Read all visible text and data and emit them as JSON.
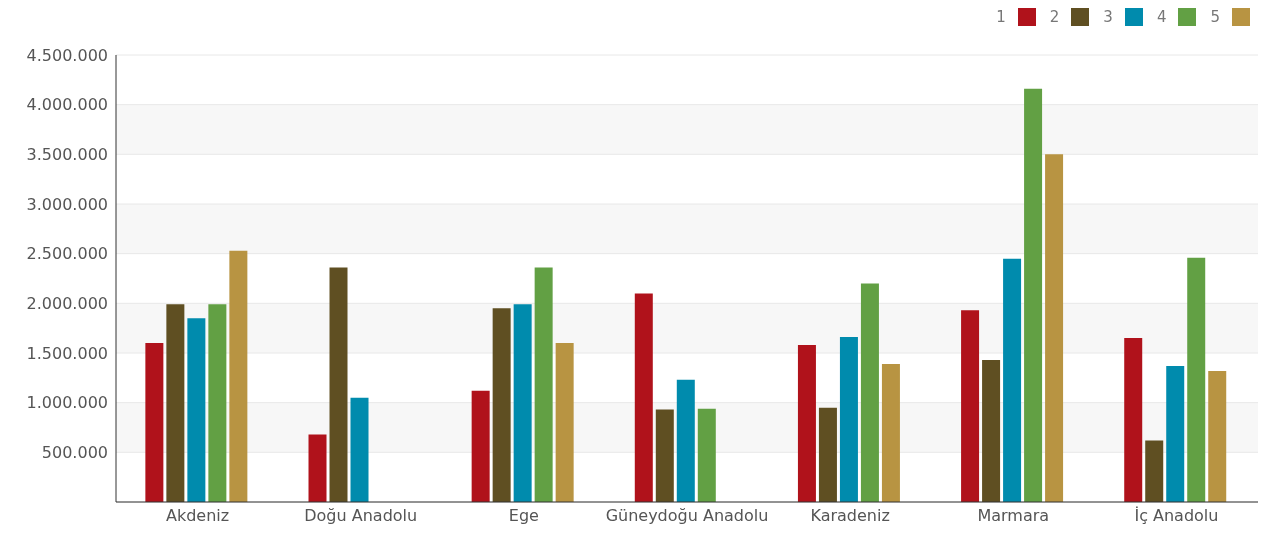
{
  "chart_data": {
    "type": "bar",
    "categories": [
      "Akdeniz",
      "Doğu Anadolu",
      "Ege",
      "Güneydoğu Anadolu",
      "Karadeniz",
      "Marmara",
      "İç Anadolu"
    ],
    "series": [
      {
        "name": "1",
        "color": "#b0121b",
        "values": [
          1600000,
          680000,
          1120000,
          2100000,
          1580000,
          1930000,
          1650000
        ]
      },
      {
        "name": "2",
        "color": "#5f4f22",
        "values": [
          1990000,
          2360000,
          1950000,
          930000,
          950000,
          1430000,
          620000
        ]
      },
      {
        "name": "3",
        "color": "#008bad",
        "values": [
          1850000,
          1050000,
          1990000,
          1230000,
          1660000,
          2450000,
          1370000
        ]
      },
      {
        "name": "4",
        "color": "#62a044",
        "values": [
          1990000,
          null,
          2360000,
          940000,
          2200000,
          4160000,
          2460000
        ]
      },
      {
        "name": "5",
        "color": "#b89442",
        "values": [
          2530000,
          null,
          1600000,
          null,
          1390000,
          3500000,
          1320000
        ]
      }
    ],
    "ylim": [
      0,
      4500000
    ],
    "yticks": [
      {
        "value": 0,
        "label": null
      },
      {
        "value": 500000,
        "label": "500.000"
      },
      {
        "value": 1000000,
        "label": "1.000.000"
      },
      {
        "value": 1500000,
        "label": "1.500.000"
      },
      {
        "value": 2000000,
        "label": "2.000.000"
      },
      {
        "value": 2500000,
        "label": "2.500.000"
      },
      {
        "value": 3000000,
        "label": "3.000.000"
      },
      {
        "value": 3500000,
        "label": "3.500.000"
      },
      {
        "value": 4000000,
        "label": "4.000.000"
      },
      {
        "value": 4500000,
        "label": "4.500.000"
      }
    ],
    "grid": "y",
    "legend": "top right"
  }
}
